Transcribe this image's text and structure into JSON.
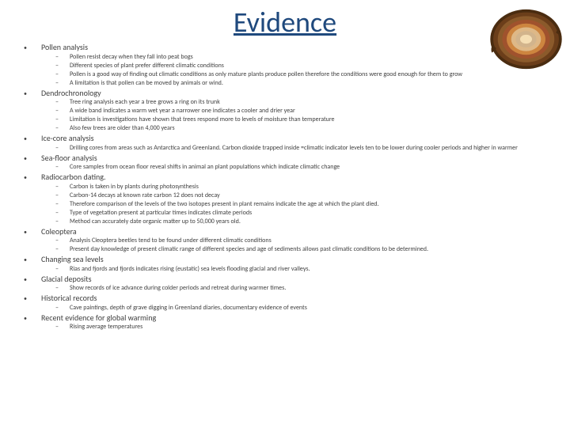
{
  "title": "Evidence",
  "title_color": "#1f497d",
  "title_fontsize": 36,
  "body_fontsize": 8,
  "section_fontsize": 10,
  "background_color": "#ffffff",
  "text_color": "#404040",
  "sections": [
    {
      "title": "Pollen analysis",
      "items": [
        "Pollen resist decay when they fall into peat bogs",
        "Different species of plant prefer different climatic conditions",
        "Pollen is a good way of finding out climatic conditions as only mature plants produce pollen therefore the conditions were good enough for them to grow",
        "A limitation is that pollen can be moved by animals or wind."
      ]
    },
    {
      "title": "Dendrochronology",
      "items": [
        "Tree ring analysis each year a tree grows a ring on its trunk",
        "A wide band indicates a warm wet year a narrower one indicates a cooler and drier year",
        "Limitation is investigations have shown that trees respond more to levels of moisture than temperature",
        "Also few trees are older than 4,000 years"
      ]
    },
    {
      "title": "Ice-core analysis",
      "items": [
        "Drilling cores from areas such as Antarctica and Greenland. Carbon dioxide trapped inside =climatic indicator levels ten to be lower during cooler periods and higher in warmer"
      ]
    },
    {
      "title": "Sea-floor analysis",
      "items": [
        "Core samples from ocean floor reveal shifts in animal an plant populations which indicate climatic change"
      ]
    },
    {
      "title": "Radiocarbon dating.",
      "items": [
        "Carbon is taken in by plants during photosynthesis",
        "Carbon-14 decays at known rate carbon 12 does not decay",
        "Therefore comparison of the levels of the two isotopes present in plant remains indicate the age at which the plant died.",
        "Type of vegetation present at particular times indicates climate periods",
        "Method can accurately date organic matter up to 50,000 years old."
      ]
    },
    {
      "title": "Coleoptera",
      "items": [
        "Analysis Cleoptera beetles tend to be found under different climatic conditions",
        "Present day knowledge of present climatic range of different species and age of sediments allows past climatic conditions to be determined."
      ]
    },
    {
      "title": "Changing sea levels",
      "items": [
        "Rias and fjords and fjords indicates rising (eustatic) sea levels flooding glacial and river valleys."
      ]
    },
    {
      "title": "Glacial deposits",
      "items": [
        "Show records of ice advance during colder periods and retreat during warmer times."
      ]
    },
    {
      "title": "Historical records",
      "items": [
        "Cave paintings, depth of grave digging in Greenland diaries, documentary evidence of events"
      ]
    },
    {
      "title": "Recent evidence for global warming",
      "items": [
        "Rising average temperatures"
      ]
    }
  ],
  "tree_ring": {
    "outer_colors": [
      "#6b3e1a",
      "#8b5a2b",
      "#a0522d",
      "#cd853f",
      "#deb887",
      "#d2b48c"
    ],
    "center_color": "#f5deb3"
  }
}
